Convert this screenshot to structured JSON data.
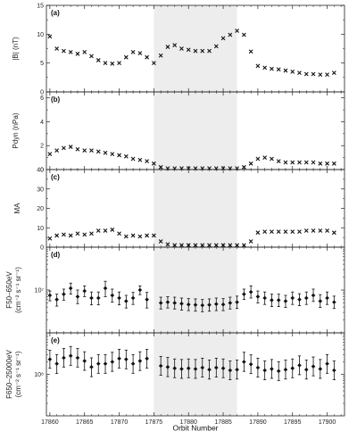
{
  "chart_data": {
    "type": "scatter",
    "x_axis": {
      "label": "Orbit Number",
      "range": [
        17859.5,
        17902.5
      ],
      "ticks": [
        17860,
        17865,
        17870,
        17875,
        17880,
        17885,
        17890,
        17895,
        17900
      ],
      "tick_labels": [
        "17860",
        "17865",
        "17870",
        "17875",
        "17880",
        "17885",
        "17890",
        "17895",
        "17900"
      ]
    },
    "shaded_interval": [
      17875,
      17887
    ],
    "panels": [
      {
        "id": "a",
        "label": "(a)",
        "ylabel": "|B| (nT)",
        "marker": "cross",
        "ylim": [
          0,
          15
        ],
        "yticks": [
          0,
          5,
          10,
          15
        ],
        "ytick_labels": [
          "0",
          "5",
          "10",
          "15"
        ],
        "x": [
          17860,
          17861,
          17862,
          17863,
          17864,
          17865,
          17866,
          17867,
          17868,
          17869,
          17870,
          17871,
          17872,
          17873,
          17874,
          17875,
          17876,
          17877,
          17878,
          17879,
          17880,
          17881,
          17882,
          17883,
          17884,
          17885,
          17886,
          17887,
          17888,
          17889,
          17890,
          17891,
          17892,
          17893,
          17894,
          17895,
          17896,
          17897,
          17898,
          17899,
          17900,
          17901
        ],
        "y": [
          9.6,
          7.5,
          7.1,
          6.9,
          6.6,
          6.9,
          6.2,
          5.5,
          5.0,
          4.9,
          5.0,
          6.0,
          6.9,
          6.7,
          6.0,
          5.0,
          6.3,
          7.8,
          8.1,
          7.5,
          7.3,
          7.1,
          7.1,
          7.1,
          7.9,
          9.3,
          9.9,
          10.6,
          9.9,
          7.0,
          4.5,
          4.2,
          4.0,
          3.9,
          3.7,
          3.5,
          3.3,
          3.1,
          3.1,
          3.0,
          3.0,
          3.3
        ]
      },
      {
        "id": "b",
        "label": "(b)",
        "ylabel": "Pdyn (nPa)",
        "marker": "cross",
        "ylim": [
          0,
          6.5
        ],
        "yticks": [
          0,
          2,
          4,
          6
        ],
        "ytick_labels": [
          "0",
          "2",
          "4",
          "6"
        ],
        "x": [
          17860,
          17861,
          17862,
          17863,
          17864,
          17865,
          17866,
          17867,
          17868,
          17869,
          17870,
          17871,
          17872,
          17873,
          17874,
          17875,
          17876,
          17877,
          17878,
          17879,
          17880,
          17881,
          17882,
          17883,
          17884,
          17885,
          17886,
          17887,
          17888,
          17889,
          17890,
          17891,
          17892,
          17893,
          17894,
          17895,
          17896,
          17897,
          17898,
          17899,
          17900,
          17901
        ],
        "y": [
          1.3,
          1.6,
          1.8,
          1.9,
          1.7,
          1.6,
          1.6,
          1.5,
          1.4,
          1.3,
          1.2,
          1.1,
          0.9,
          0.8,
          0.7,
          0.5,
          0.2,
          0.1,
          0.1,
          0.1,
          0.1,
          0.1,
          0.1,
          0.1,
          0.1,
          0.1,
          0.1,
          0.1,
          0.2,
          0.5,
          0.9,
          1.0,
          0.9,
          0.7,
          0.6,
          0.6,
          0.6,
          0.6,
          0.6,
          0.5,
          0.5,
          0.5
        ]
      },
      {
        "id": "c",
        "label": "(c)",
        "ylabel": "MA",
        "marker": "cross",
        "ylim": [
          0,
          40
        ],
        "yticks": [
          0,
          10,
          20,
          30,
          40
        ],
        "ytick_labels": [
          "0",
          "10",
          "20",
          "30",
          "40"
        ],
        "x": [
          17860,
          17861,
          17862,
          17863,
          17864,
          17865,
          17866,
          17867,
          17868,
          17869,
          17870,
          17871,
          17872,
          17873,
          17874,
          17875,
          17876,
          17877,
          17878,
          17879,
          17880,
          17881,
          17882,
          17883,
          17884,
          17885,
          17886,
          17887,
          17888,
          17889,
          17890,
          17891,
          17892,
          17893,
          17894,
          17895,
          17896,
          17897,
          17898,
          17899,
          17900,
          17901
        ],
        "y": [
          4.5,
          6.0,
          6.5,
          6.0,
          7.0,
          6.5,
          7.0,
          8.5,
          8.5,
          9.0,
          7.0,
          5.5,
          6.0,
          5.5,
          6.0,
          6.0,
          3.0,
          1.5,
          1.0,
          1.0,
          1.0,
          1.0,
          1.0,
          1.0,
          1.0,
          1.0,
          1.0,
          1.0,
          1.0,
          3.0,
          7.5,
          8.0,
          8.0,
          8.0,
          8.0,
          8.0,
          8.0,
          8.5,
          8.5,
          8.5,
          8.5,
          7.5
        ]
      },
      {
        "id": "d",
        "label": "(d)",
        "ylabel": "F50–650eV (cm⁻² s⁻¹ sr⁻¹)",
        "marker": "diamond",
        "log": true,
        "ylim": [
          1000000.0,
          100000000.0
        ],
        "yticks": [
          10000000
        ],
        "ytick_labels": [
          "10⁷"
        ],
        "x": [
          17860,
          17861,
          17862,
          17863,
          17864,
          17865,
          17866,
          17867,
          17868,
          17869,
          17870,
          17871,
          17872,
          17873,
          17874,
          17876,
          17877,
          17878,
          17879,
          17880,
          17881,
          17882,
          17883,
          17884,
          17885,
          17886,
          17887,
          17888,
          17889,
          17890,
          17891,
          17892,
          17893,
          17894,
          17895,
          17896,
          17897,
          17898,
          17899,
          17900,
          17901
        ],
        "y": [
          7500000,
          6000000,
          8000000,
          11000000,
          7000000,
          9500000,
          6500000,
          6500000,
          11000000,
          7500000,
          6500000,
          5500000,
          6500000,
          10000000,
          6000000,
          5000000,
          5200000,
          5000000,
          4800000,
          4600000,
          4500000,
          4400000,
          4500000,
          4700000,
          4600000,
          5000000,
          5200000,
          8000000,
          9000000,
          7000000,
          6500000,
          5800000,
          5800000,
          5500000,
          6500000,
          6000000,
          6500000,
          7500000,
          5500000,
          6500000,
          5200000
        ],
        "err_low": [
          5600000,
          4200000,
          5800000,
          8000000,
          4800000,
          7000000,
          4500000,
          4500000,
          7000000,
          5200000,
          4500000,
          3800000,
          4600000,
          7800000,
          3800000,
          3600000,
          3800000,
          3600000,
          3400000,
          3300000,
          3200000,
          3100000,
          3200000,
          3300000,
          3300000,
          3600000,
          3700000,
          6000000,
          6500000,
          5000000,
          4600000,
          4100000,
          4100000,
          3900000,
          4600000,
          4300000,
          4600000,
          5400000,
          3900000,
          4600000,
          3700000
        ],
        "err_high": [
          9500000,
          8000000,
          10500000,
          14500000,
          10000000,
          12500000,
          9000000,
          9000000,
          16000000,
          10500000,
          9000000,
          7500000,
          8800000,
          12500000,
          8800000,
          6800000,
          7000000,
          6800000,
          6500000,
          6300000,
          6200000,
          6000000,
          6200000,
          6500000,
          6300000,
          6800000,
          7200000,
          10500000,
          12500000,
          9500000,
          9000000,
          8000000,
          8000000,
          7500000,
          9000000,
          8200000,
          9000000,
          10500000,
          7800000,
          9000000,
          7200000
        ]
      },
      {
        "id": "e",
        "label": "(e)",
        "ylabel": "F650–25000eV (cm⁻² s⁻¹ sr⁻¹)",
        "marker": "diamond",
        "log": true,
        "ylim": [
          10000000.0,
          1000000000.0
        ],
        "yticks": [
          100000000
        ],
        "ytick_labels": [
          "10⁸"
        ],
        "x": [
          17860,
          17861,
          17862,
          17863,
          17864,
          17865,
          17866,
          17867,
          17868,
          17869,
          17870,
          17871,
          17872,
          17873,
          17874,
          17876,
          17877,
          17878,
          17879,
          17880,
          17881,
          17882,
          17883,
          17884,
          17885,
          17886,
          17887,
          17888,
          17889,
          17890,
          17891,
          17892,
          17893,
          17894,
          17895,
          17896,
          17897,
          17898,
          17899,
          17900,
          17901
        ],
        "y": [
          230000000,
          180000000,
          250000000,
          280000000,
          250000000,
          210000000,
          150000000,
          180000000,
          180000000,
          200000000,
          240000000,
          230000000,
          180000000,
          210000000,
          240000000,
          160000000,
          150000000,
          140000000,
          135000000,
          140000000,
          135000000,
          145000000,
          130000000,
          145000000,
          140000000,
          125000000,
          130000000,
          200000000,
          175000000,
          145000000,
          125000000,
          135000000,
          120000000,
          130000000,
          140000000,
          165000000,
          130000000,
          155000000,
          135000000,
          180000000,
          125000000
        ],
        "err_low": [
          140000000,
          105000000,
          150000000,
          165000000,
          150000000,
          125000000,
          88000000,
          106000000,
          106000000,
          118000000,
          142000000,
          136000000,
          106000000,
          124000000,
          142000000,
          95000000,
          88000000,
          83000000,
          80000000,
          83000000,
          80000000,
          86000000,
          77000000,
          86000000,
          83000000,
          74000000,
          77000000,
          118000000,
          104000000,
          86000000,
          74000000,
          80000000,
          71000000,
          77000000,
          83000000,
          98000000,
          77000000,
          92000000,
          80000000,
          106000000,
          74000000
        ],
        "err_high": [
          380000000,
          300000000,
          420000000,
          470000000,
          420000000,
          350000000,
          250000000,
          300000000,
          300000000,
          340000000,
          400000000,
          385000000,
          300000000,
          350000000,
          400000000,
          270000000,
          255000000,
          235000000,
          228000000,
          235000000,
          228000000,
          245000000,
          220000000,
          245000000,
          235000000,
          210000000,
          220000000,
          340000000,
          295000000,
          245000000,
          210000000,
          228000000,
          202000000,
          220000000,
          235000000,
          278000000,
          220000000,
          262000000,
          228000000,
          300000000,
          210000000
        ]
      }
    ]
  }
}
